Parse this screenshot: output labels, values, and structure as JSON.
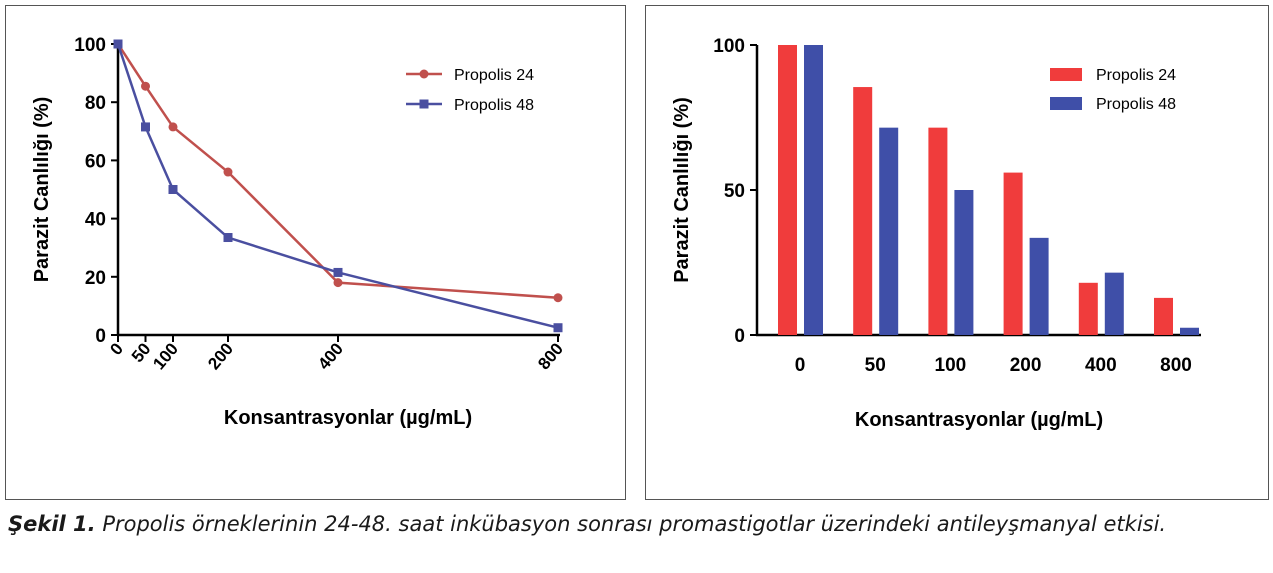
{
  "caption": {
    "label": "Şekil 1.",
    "text": " Propolis örneklerinin 24-48. saat inkübasyon sonrası promastigotlar üzerindeki antileyşmanyal etkisi."
  },
  "colors": {
    "line_p24": "#c0504d",
    "line_p48": "#4a4fa0",
    "bar_p24": "#f03c3c",
    "bar_p48": "#3f4fa8"
  },
  "chart_data": [
    {
      "type": "line",
      "xlabel": "Konsantrasyonlar (µg/mL)",
      "ylabel": "Parazit Canlılığı (%)",
      "x": [
        0,
        50,
        100,
        200,
        400,
        800
      ],
      "x_tick_labels": [
        "0",
        "50",
        "100",
        "200",
        "400",
        "800"
      ],
      "xlim": [
        0,
        800
      ],
      "ylim": [
        0,
        100
      ],
      "y_ticks": [
        0,
        20,
        40,
        60,
        80,
        100
      ],
      "legend_position": "top-right",
      "series": [
        {
          "name": "Propolis 24",
          "marker": "circle",
          "values": [
            100,
            85.5,
            71.5,
            56,
            18,
            12.8
          ]
        },
        {
          "name": "Propolis 48",
          "marker": "square",
          "values": [
            100,
            71.5,
            50,
            33.5,
            21.5,
            2.5
          ]
        }
      ]
    },
    {
      "type": "bar",
      "xlabel": "Konsantrasyonlar (µg/mL)",
      "ylabel": "Parazit Canlılığı (%)",
      "categories": [
        "0",
        "50",
        "100",
        "200",
        "400",
        "800"
      ],
      "ylim": [
        0,
        100
      ],
      "y_ticks": [
        0,
        50,
        100
      ],
      "legend_position": "top-right",
      "series": [
        {
          "name": "Propolis 24",
          "values": [
            100,
            85.5,
            71.5,
            56,
            18,
            12.8
          ]
        },
        {
          "name": "Propolis 48",
          "values": [
            100,
            71.5,
            50,
            33.5,
            21.5,
            2.5
          ]
        }
      ]
    }
  ]
}
